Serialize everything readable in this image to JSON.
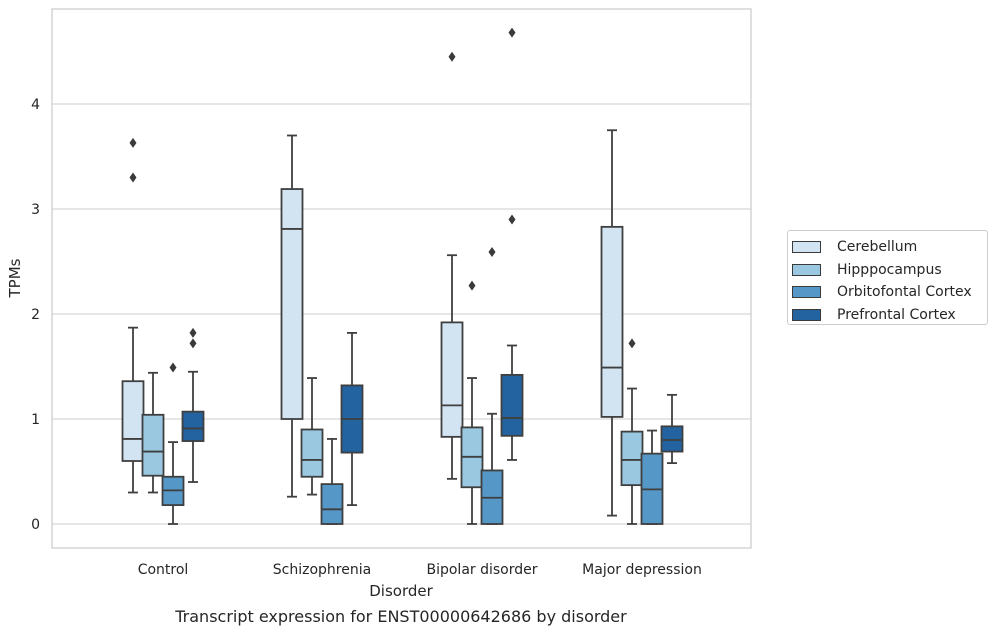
{
  "caption": "Transcript expression for ENST00000642686 by disorder",
  "chart_data": {
    "type": "box",
    "xlabel": "Disorder",
    "ylabel": "TPMs",
    "ylim": [
      -0.23,
      4.9
    ],
    "yticks": [
      0,
      1,
      2,
      3,
      4
    ],
    "grid": "horizontal",
    "legend_position": "right",
    "categories": [
      "Control",
      "Schizophrenia",
      "Bipolar disorder",
      "Major depression"
    ],
    "series": [
      {
        "name": "Cerebellum",
        "color": "#d2e3f2",
        "boxes": [
          {
            "min": 0.3,
            "q1": 0.6,
            "median": 0.81,
            "q3": 1.36,
            "max": 1.87,
            "outliers": [
              3.3,
              3.63
            ]
          },
          {
            "min": 0.26,
            "q1": 1.0,
            "median": 2.81,
            "q3": 3.19,
            "max": 3.7,
            "outliers": []
          },
          {
            "min": 0.43,
            "q1": 0.83,
            "median": 1.13,
            "q3": 1.92,
            "max": 2.56,
            "outliers": [
              4.45
            ]
          },
          {
            "min": 0.08,
            "q1": 1.02,
            "median": 1.49,
            "q3": 2.83,
            "max": 3.75,
            "outliers": []
          }
        ]
      },
      {
        "name": "Hipppocampus",
        "color": "#9ac8e0",
        "boxes": [
          {
            "min": 0.3,
            "q1": 0.46,
            "median": 0.69,
            "q3": 1.04,
            "max": 1.44,
            "outliers": []
          },
          {
            "min": 0.28,
            "q1": 0.45,
            "median": 0.61,
            "q3": 0.9,
            "max": 1.39,
            "outliers": []
          },
          {
            "min": 0.0,
            "q1": 0.35,
            "median": 0.64,
            "q3": 0.92,
            "max": 1.39,
            "outliers": [
              2.27
            ]
          },
          {
            "min": 0.0,
            "q1": 0.37,
            "median": 0.61,
            "q3": 0.88,
            "max": 1.29,
            "outliers": [
              1.72
            ]
          }
        ]
      },
      {
        "name": "Orbitofontal Cortex",
        "color": "#5597c6",
        "boxes": [
          {
            "min": 0.0,
            "q1": 0.18,
            "median": 0.32,
            "q3": 0.45,
            "max": 0.78,
            "outliers": [
              1.49
            ]
          },
          {
            "min": 0.0,
            "q1": 0.0,
            "median": 0.14,
            "q3": 0.38,
            "max": 0.81,
            "outliers": []
          },
          {
            "min": 0.0,
            "q1": 0.0,
            "median": 0.25,
            "q3": 0.51,
            "max": 1.05,
            "outliers": [
              2.59
            ]
          },
          {
            "min": 0.0,
            "q1": 0.0,
            "median": 0.33,
            "q3": 0.67,
            "max": 0.89,
            "outliers": []
          }
        ]
      },
      {
        "name": "Prefrontal Cortex",
        "color": "#2363a0",
        "boxes": [
          {
            "min": 0.4,
            "q1": 0.79,
            "median": 0.91,
            "q3": 1.07,
            "max": 1.45,
            "outliers": [
              1.72,
              1.82
            ]
          },
          {
            "min": 0.18,
            "q1": 0.68,
            "median": 1.0,
            "q3": 1.32,
            "max": 1.82,
            "outliers": []
          },
          {
            "min": 0.61,
            "q1": 0.84,
            "median": 1.01,
            "q3": 1.42,
            "max": 1.7,
            "outliers": [
              2.9,
              4.68
            ]
          },
          {
            "min": 0.58,
            "q1": 0.69,
            "median": 0.8,
            "q3": 0.93,
            "max": 1.23,
            "outliers": []
          }
        ]
      }
    ]
  }
}
